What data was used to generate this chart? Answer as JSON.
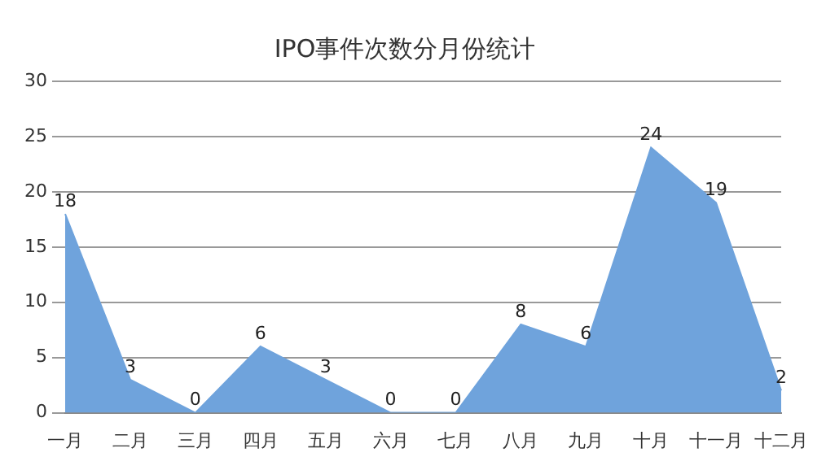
{
  "chart_data": {
    "type": "area",
    "title": "IPO事件次数分月份统计",
    "categories": [
      "一月",
      "二月",
      "三月",
      "四月",
      "五月",
      "六月",
      "七月",
      "八月",
      "九月",
      "十月",
      "十一月",
      "十二月"
    ],
    "values": [
      18,
      3,
      0,
      6,
      3,
      0,
      0,
      8,
      6,
      24,
      19,
      2
    ],
    "color": "#6fa3dc",
    "ylim": [
      0,
      30
    ],
    "yticks": [
      0,
      5,
      10,
      15,
      20,
      25,
      30
    ],
    "grid": "y",
    "data_labels": true
  }
}
